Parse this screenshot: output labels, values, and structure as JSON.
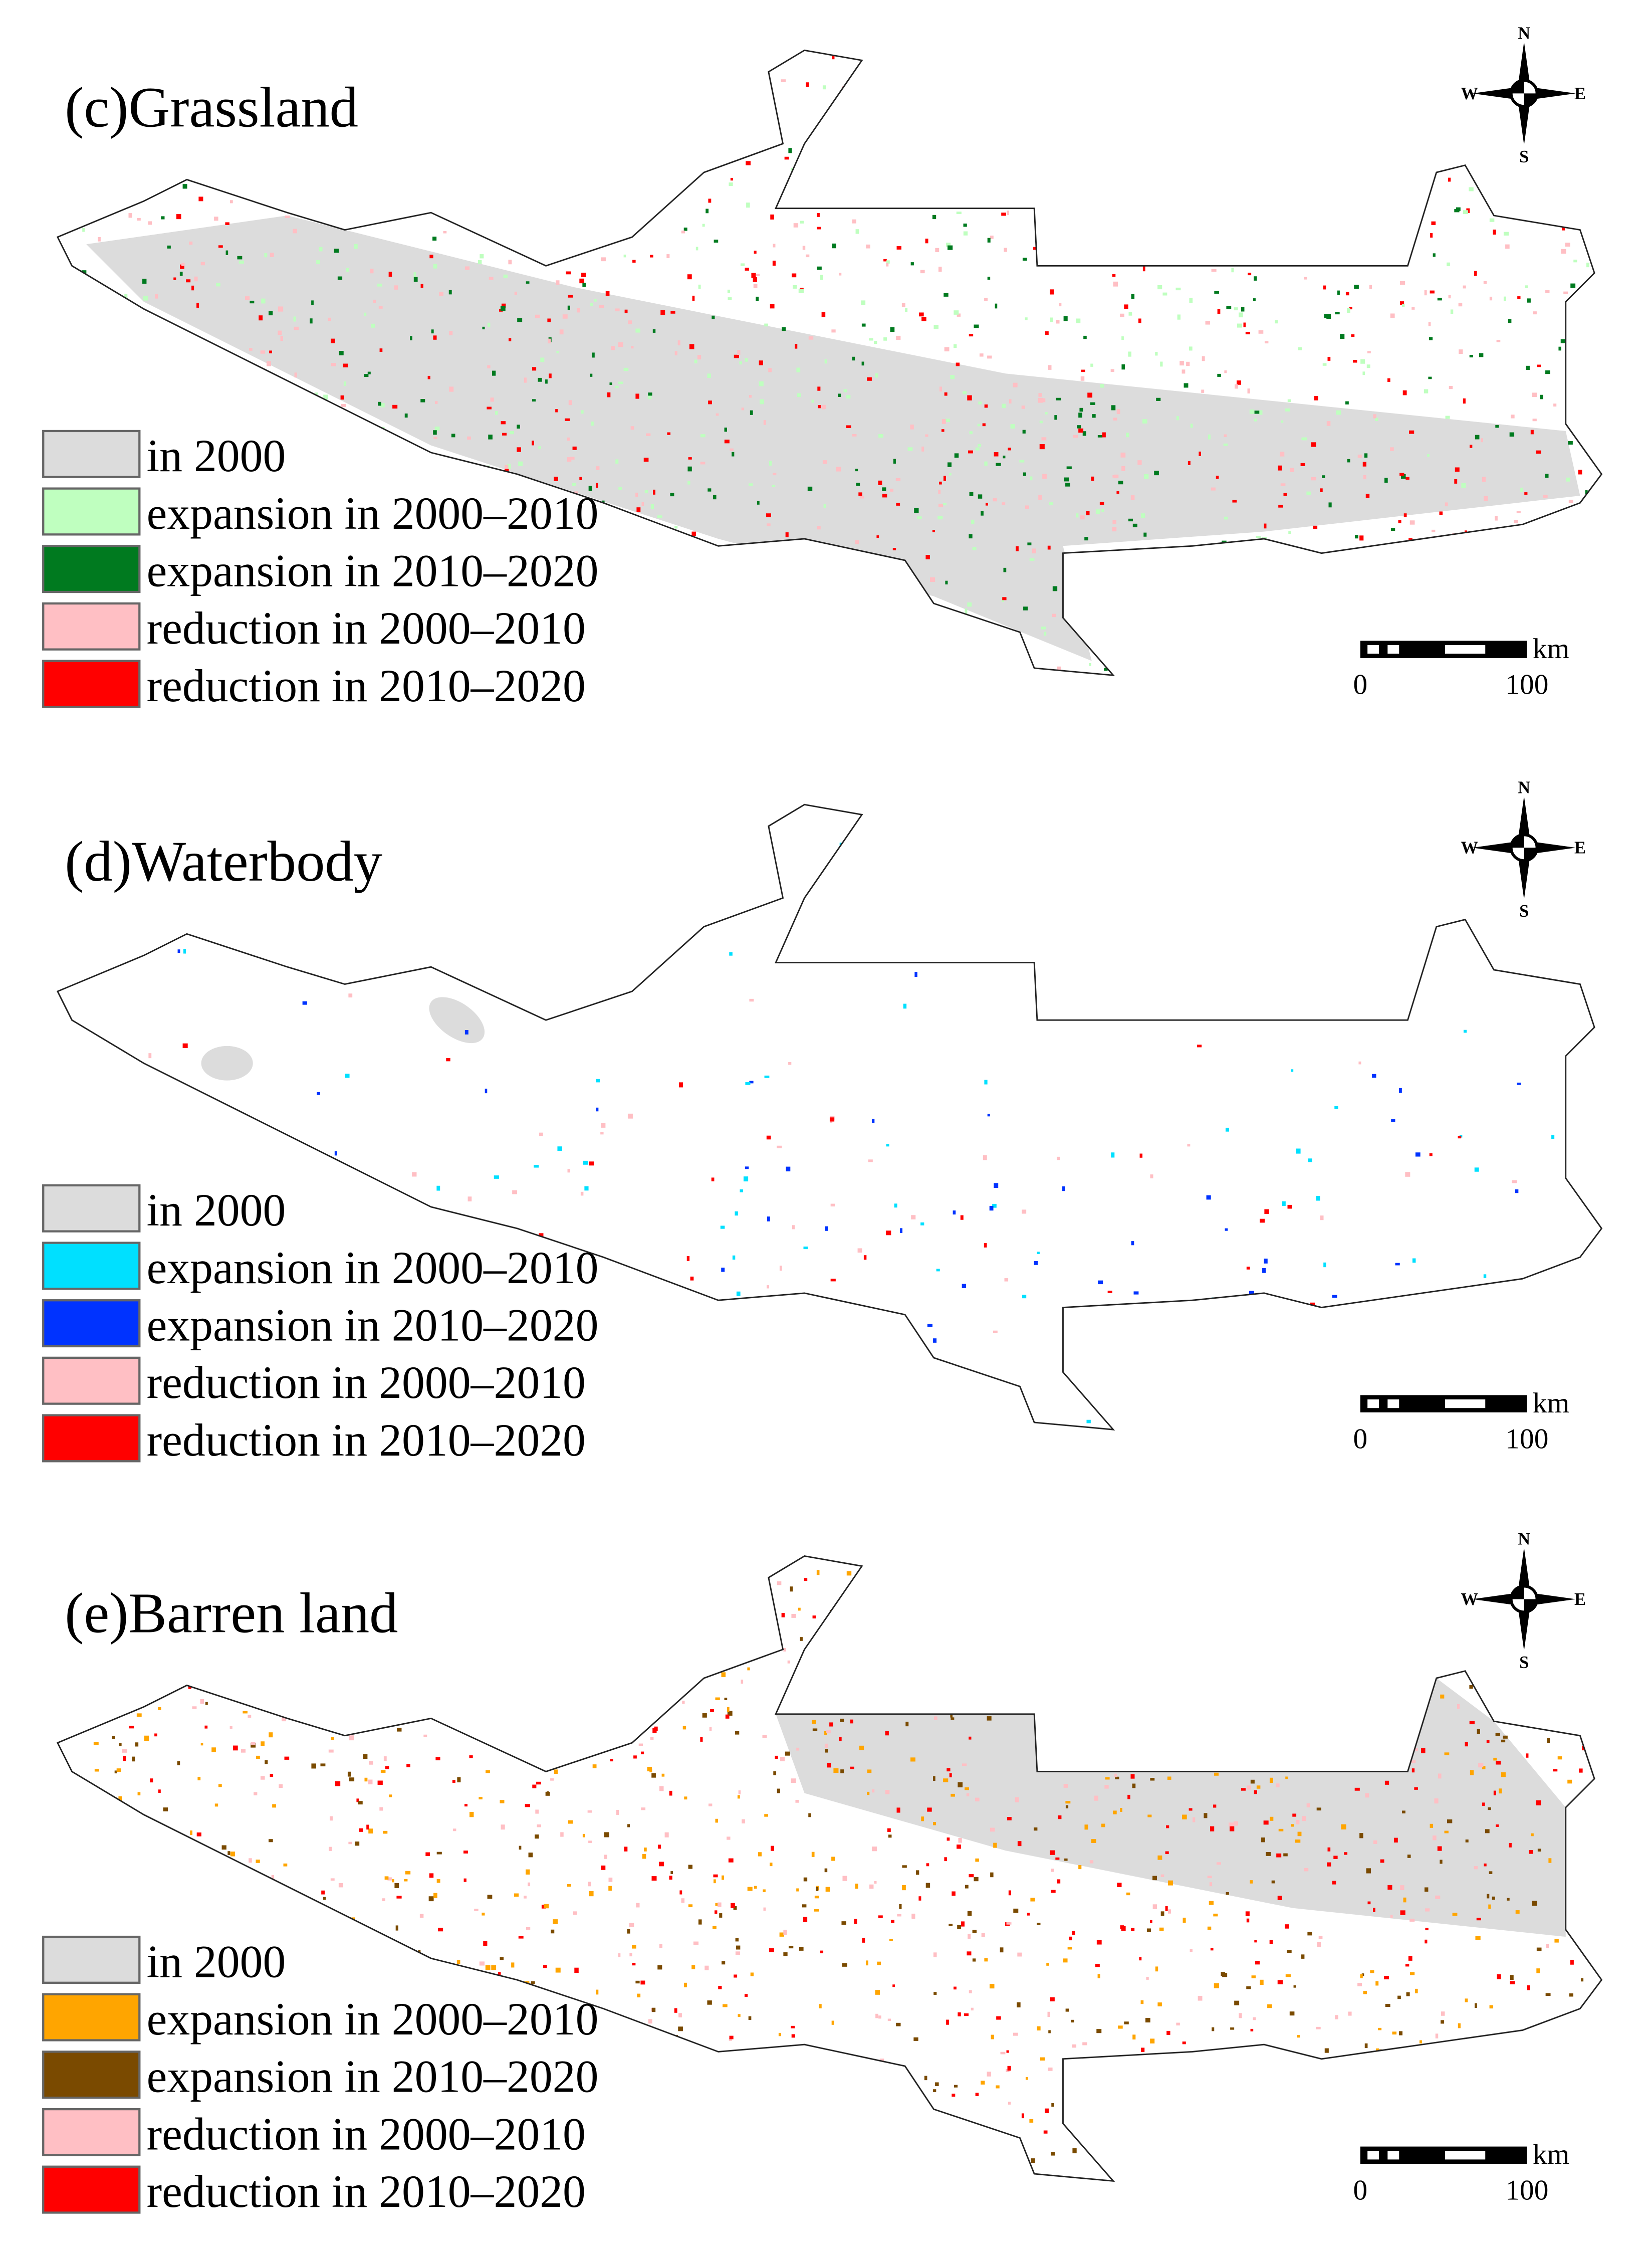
{
  "compass": {
    "n": "N",
    "e": "E",
    "s": "S",
    "w": "W"
  },
  "scale_bar": {
    "unit": "km",
    "ticks": [
      0,
      100
    ]
  },
  "panels": [
    {
      "title": "(c)Grassland",
      "legend": [
        {
          "label": "in 2000",
          "color": "#dcdcdc"
        },
        {
          "label": "expansion in 2000–2010",
          "color": "#bfffbf"
        },
        {
          "label": "expansion in 2010–2020",
          "color": "#007a1f"
        },
        {
          "label": "reduction in 2000–2010",
          "color": "#ffbfc4"
        },
        {
          "label": "reduction in 2010–2020",
          "color": "#ff0000"
        }
      ]
    },
    {
      "title": "(d)Waterbody",
      "legend": [
        {
          "label": "in 2000",
          "color": "#dcdcdc"
        },
        {
          "label": "expansion in 2000–2010",
          "color": "#00e0ff"
        },
        {
          "label": "expansion in 2010–2020",
          "color": "#0033ff"
        },
        {
          "label": "reduction in 2000–2010",
          "color": "#ffbfc4"
        },
        {
          "label": "reduction in 2010–2020",
          "color": "#ff0000"
        }
      ]
    },
    {
      "title": "(e)Barren land",
      "legend": [
        {
          "label": "in 2000",
          "color": "#dcdcdc"
        },
        {
          "label": "expansion in 2000–2010",
          "color": "#ffa500"
        },
        {
          "label": "expansion in 2010–2020",
          "color": "#7a4a00"
        },
        {
          "label": "reduction in 2000–2010",
          "color": "#ffbfc4"
        },
        {
          "label": "reduction in 2010–2020",
          "color": "#ff0000"
        }
      ]
    }
  ]
}
